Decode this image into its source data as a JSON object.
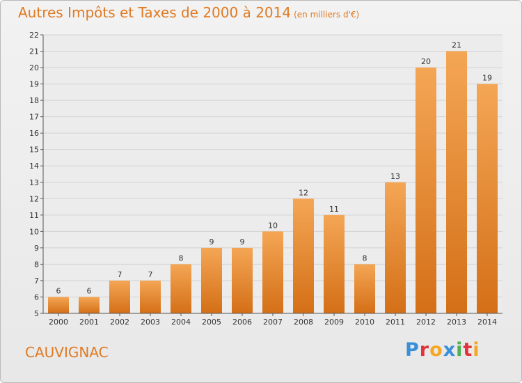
{
  "title": "Autres Impôts et Taxes de 2000 à 2014",
  "title_unit": "(en milliers d'€)",
  "commune": "CAUVIGNAC",
  "logo": {
    "letters": [
      "P",
      "r",
      "o",
      "x",
      "i",
      "t",
      "i"
    ],
    "colors": [
      "#3a8fd9",
      "#e2333a",
      "#f5a623",
      "#3a8fd9",
      "#4caf50",
      "#e2333a",
      "#f5a623"
    ]
  },
  "colors": {
    "accent": "#e07a22",
    "bar_top": "#f4a655",
    "bar_bottom": "#d46f17"
  },
  "chart_data": {
    "type": "bar",
    "title": "Autres Impôts et Taxes de 2000 à 2014",
    "subtitle": "(en milliers d'€)",
    "categories": [
      "2000",
      "2001",
      "2002",
      "2003",
      "2004",
      "2005",
      "2006",
      "2007",
      "2008",
      "2009",
      "2010",
      "2011",
      "2012",
      "2013",
      "2014"
    ],
    "values": [
      6,
      6,
      7,
      7,
      8,
      9,
      9,
      10,
      12,
      11,
      8,
      13,
      20,
      21,
      19
    ],
    "ylim": [
      5,
      22
    ],
    "yticks": [
      5,
      6,
      7,
      8,
      9,
      10,
      11,
      12,
      13,
      14,
      15,
      16,
      17,
      18,
      19,
      20,
      21,
      22
    ],
    "grid": true,
    "xlabel": "",
    "ylabel": ""
  }
}
